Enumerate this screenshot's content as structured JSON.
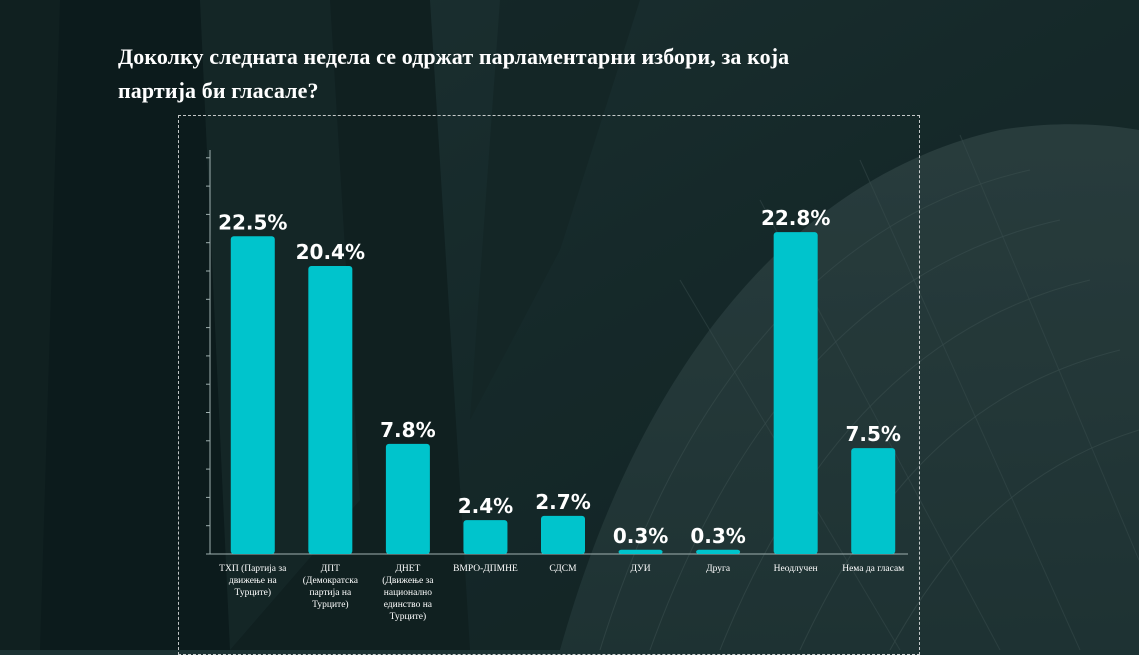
{
  "theme": {
    "bar_color": "#00c4cc",
    "background_color": "#1c3233",
    "text_color": "#ffffff"
  },
  "chart_data": {
    "type": "bar",
    "title": "Доколку следната недела се одржат парламентарни избори, за која партија би гласале?",
    "categories": [
      [
        "ТХП (Партија за",
        "движење на",
        "Турците)"
      ],
      [
        "ДПТ",
        "(Демократска",
        "партија на",
        "Турците)"
      ],
      [
        "ДНЕТ",
        "(Движење за",
        "национално",
        "единство на",
        "Турците)"
      ],
      [
        "ВМРО-ДПМНЕ"
      ],
      [
        "СДСМ"
      ],
      [
        "ДУИ"
      ],
      [
        "Друга"
      ],
      [
        "Неодлучен"
      ],
      [
        "Нема да гласам"
      ]
    ],
    "values": [
      22.5,
      20.4,
      7.8,
      2.4,
      2.7,
      0.3,
      0.3,
      22.8,
      7.5
    ],
    "value_labels": [
      "22.5%",
      "20.4%",
      "7.8%",
      "2.4%",
      "2.7%",
      "0.3%",
      "0.3%",
      "22.8%",
      "7.5%"
    ],
    "ylim": [
      0,
      25
    ],
    "xlabel": "",
    "ylabel": "",
    "grid": false,
    "legend": "none"
  }
}
